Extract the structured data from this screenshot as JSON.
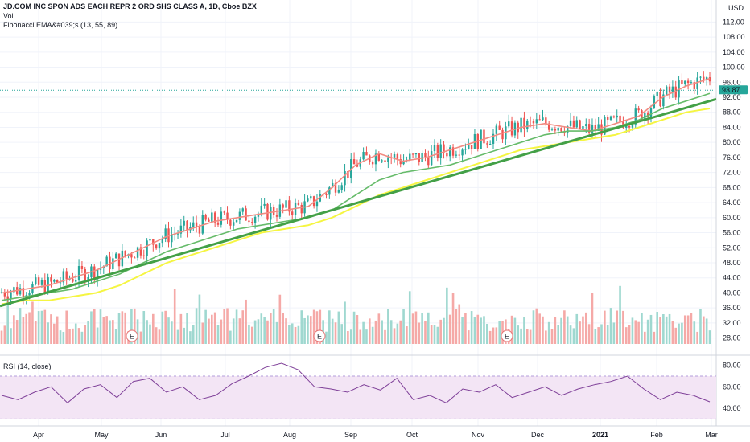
{
  "header": {
    "symbol_line": "JD.COM INC SPON ADS EACH REPR 2 ORD SHS CLASS A, 1D, Cboe BZX",
    "vol_label": "Vol",
    "ema_label": "Fibonacci EMA&#039;s (13, 55, 89)",
    "currency": "USD"
  },
  "rsi": {
    "label": "RSI (14, close)"
  },
  "colors": {
    "up": "#26a69a",
    "down": "#ef5350",
    "ema13": "#f28b82",
    "ema55": "#66bb6a",
    "ema89": "#f5f542",
    "trendline": "#43a047",
    "rsi_line": "#7e3f98",
    "rsi_band": "#f3e5f5",
    "price_badge": "#26a69a"
  },
  "chart_data": {
    "type": "line",
    "title": "JD.COM INC SPON ADS EACH REPR 2 ORD SHS CLASS A, 1D, Cboe BZX",
    "price_axis": {
      "ticks": [
        "112.00",
        "108.00",
        "104.00",
        "100.00",
        "96.00",
        "92.00",
        "88.00",
        "84.00",
        "80.00",
        "76.00",
        "72.00",
        "68.00",
        "64.00",
        "60.00",
        "56.00",
        "52.00",
        "48.00",
        "44.00",
        "40.00",
        "36.00",
        "32.00",
        "28.00"
      ],
      "ylim": [
        26,
        114
      ],
      "last_price": "93.87"
    },
    "rsi_axis": {
      "ticks": [
        "80.00",
        "60.00",
        "40.00"
      ],
      "upper_band": 70,
      "lower_band": 30
    },
    "months": [
      "Apr",
      "May",
      "Jun",
      "Jul",
      "Aug",
      "Sep",
      "Oct",
      "Nov",
      "Dec",
      "2021",
      "Feb",
      "Mar"
    ],
    "earnings_markers": [
      "E",
      "E",
      "E"
    ],
    "series": [
      {
        "name": "EMA 13",
        "values": [
          40,
          41,
          42,
          44,
          46,
          49,
          52,
          55,
          57,
          59,
          60,
          61,
          62,
          63,
          68,
          74,
          77,
          75,
          76,
          78,
          80,
          82,
          84,
          85,
          84,
          83,
          85,
          87,
          92,
          95,
          97
        ]
      },
      {
        "name": "EMA 55",
        "values": [
          38,
          39,
          40,
          41,
          43,
          45,
          48,
          51,
          53,
          55,
          57,
          58,
          59,
          60,
          62,
          66,
          70,
          72,
          73,
          74,
          76,
          78,
          80,
          82,
          83,
          83,
          84,
          86,
          89,
          91,
          93
        ]
      },
      {
        "name": "EMA 89",
        "values": [
          37,
          38,
          38,
          39,
          40,
          42,
          45,
          48,
          50,
          52,
          54,
          56,
          57,
          58,
          60,
          63,
          66,
          68,
          70,
          72,
          74,
          76,
          78,
          79,
          80,
          81,
          82,
          84,
          86,
          88,
          89
        ]
      }
    ],
    "trendline": {
      "start": 36.5,
      "end": 91.5
    },
    "rsi_values": [
      52,
      48,
      55,
      60,
      45,
      58,
      62,
      50,
      65,
      68,
      55,
      60,
      48,
      52,
      63,
      70,
      78,
      82,
      76,
      60,
      58,
      55,
      62,
      57,
      68,
      48,
      52,
      45,
      58,
      55,
      62,
      50,
      55,
      60,
      52,
      58,
      62,
      65,
      70,
      58,
      48,
      55,
      52,
      46
    ]
  }
}
